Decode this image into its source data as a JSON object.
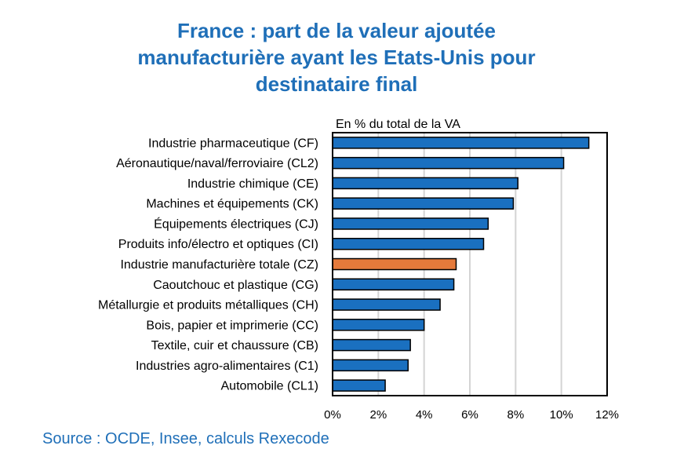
{
  "header": {
    "title_lines": [
      "France : part de la valeur ajoutée",
      "manufacturière ayant les Etats-Unis pour",
      "destinataire final"
    ]
  },
  "chart_data": {
    "type": "bar",
    "orientation": "horizontal",
    "unit_label": "En % du total de la VA",
    "categories": [
      "Industrie pharmaceutique (CF)",
      "Aéronautique/naval/ferroviaire (CL2)",
      "Industrie chimique (CE)",
      "Machines et équipements (CK)",
      "Équipements électriques (CJ)",
      "Produits info/électro et optiques (CI)",
      "Industrie manufacturière totale (CZ)",
      "Caoutchouc et plastique (CG) ",
      "Métallurgie et produits métalliques (CH)",
      "Bois, papier et imprimerie (CC)",
      "Textile, cuir et chaussure (CB)",
      "Industries agro-alimentaires (C1)",
      "Automobile (CL1)"
    ],
    "values": [
      11.2,
      10.1,
      8.1,
      7.9,
      6.8,
      6.6,
      5.4,
      5.3,
      4.7,
      4.0,
      3.4,
      3.3,
      2.3
    ],
    "highlight_index": 6,
    "xlim": [
      0,
      12
    ],
    "xticks": [
      0,
      2,
      4,
      6,
      8,
      10,
      12
    ],
    "xtick_labels": [
      "0%",
      "2%",
      "4%",
      "6%",
      "8%",
      "10%",
      "12%"
    ],
    "grid": "vertical",
    "colors": {
      "bar": "#1a70c0",
      "highlight": "#e57a3b",
      "grid": "#d4d4d4",
      "border": "#000000"
    }
  },
  "footer": {
    "source": "Source : OCDE, Insee, calculs Rexecode"
  }
}
